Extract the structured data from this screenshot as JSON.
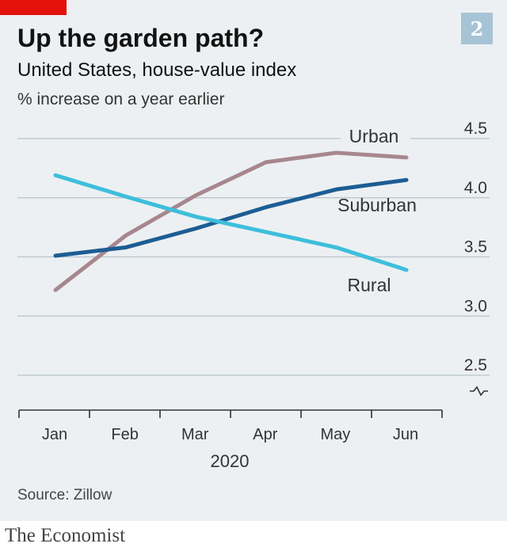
{
  "header": {
    "title": "Up the garden path?",
    "subtitle": "United States, house-value index",
    "unit": "% increase on a year earlier",
    "chart_number": "2"
  },
  "footer": {
    "source": "Source: Zillow",
    "brand": "The Economist"
  },
  "colors": {
    "brand_red": "#e3120b",
    "background": "#ecf0f2",
    "urban": "#a7878e",
    "suburban": "#1c5d94",
    "rural": "#3ebedb",
    "badge": "#a7c3d6"
  },
  "chart_data": {
    "type": "line",
    "title": "Up the garden path?",
    "subtitle": "United States, house-value index",
    "ylabel": "% increase on a year earlier",
    "xlabel": "2020",
    "categories": [
      "Jan",
      "Feb",
      "Mar",
      "Apr",
      "May",
      "Jun"
    ],
    "ylim": [
      2.5,
      4.5
    ],
    "yticks": [
      "2.5",
      "3.0",
      "3.5",
      "4.0",
      "4.5"
    ],
    "grid": true,
    "axis_break": true,
    "series": [
      {
        "name": "Urban",
        "color": "#a7878e",
        "values": [
          3.22,
          3.68,
          4.02,
          4.3,
          4.38,
          4.34
        ]
      },
      {
        "name": "Suburban",
        "color": "#1c5d94",
        "values": [
          3.51,
          3.58,
          3.74,
          3.92,
          4.07,
          4.15
        ]
      },
      {
        "name": "Rural",
        "color": "#3ebedb",
        "values": [
          4.19,
          4.01,
          3.84,
          3.71,
          3.58,
          3.39
        ]
      }
    ]
  }
}
